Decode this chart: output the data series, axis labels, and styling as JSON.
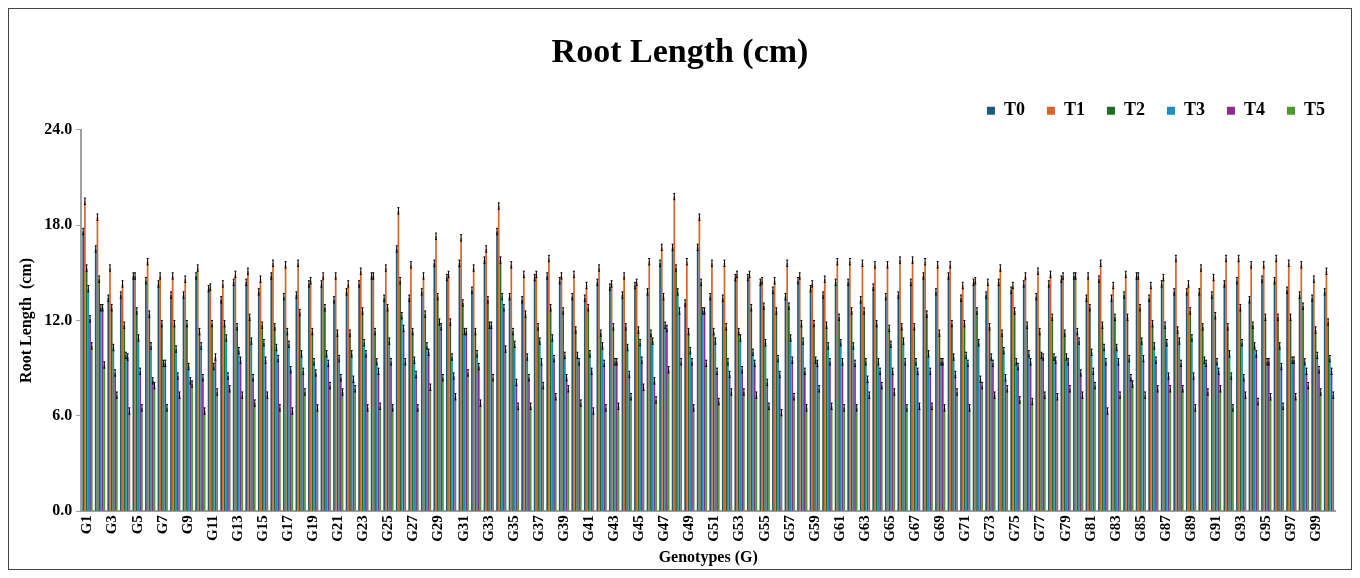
{
  "chart_data": {
    "type": "bar",
    "title": "Root Length (cm)",
    "xlabel": "Genotypes (G)",
    "ylabel": "Root Length  (cm)",
    "categories": [
      "G1",
      null,
      "G3",
      null,
      "G5",
      null,
      "G7",
      null,
      "G9",
      null,
      "G11",
      null,
      "G13",
      null,
      "G15",
      null,
      "G17",
      null,
      "G19",
      null,
      "G21",
      null,
      "G23",
      null,
      "G25",
      null,
      "G27",
      null,
      "G29",
      null,
      "G31",
      null,
      "G33",
      null,
      "G35",
      null,
      "G37",
      null,
      "G39",
      null,
      "G41",
      null,
      "G43",
      null,
      "G45",
      null,
      "G47",
      null,
      "G49",
      null,
      "G51",
      null,
      "G53",
      null,
      "G55",
      null,
      "G57",
      null,
      "G59",
      null,
      "G61",
      null,
      "G63",
      null,
      "G65",
      null,
      "G67",
      null,
      "G69",
      null,
      "G71",
      null,
      "G73",
      null,
      "G75",
      null,
      "G77",
      null,
      "G79",
      null,
      "G81",
      null,
      "G83",
      null,
      "G85",
      null,
      "G87",
      null,
      "G89",
      null,
      "G91",
      null,
      "G93",
      null,
      "G95",
      null,
      "G97",
      null,
      "G99",
      null
    ],
    "series": [
      {
        "name": "T0",
        "color": "#1f5a7a",
        "values": [
          17.6,
          16.5,
          13.4,
          13.6,
          14.8,
          14.5,
          14.3,
          13.6,
          13.6,
          14.8,
          14.0,
          13.3,
          14.4,
          14.4,
          13.8,
          14.8,
          13.5,
          13.6,
          14.3,
          14.3,
          13.3,
          13.8,
          14.3,
          14.8,
          13.4,
          16.5,
          13.4,
          13.8,
          15.6,
          14.7,
          15.6,
          13.9,
          15.8,
          17.6,
          13.5,
          13.3,
          14.7,
          14.8,
          14.5,
          13.5,
          13.4,
          14.4,
          14.1,
          13.6,
          14.2,
          13.8,
          15.6,
          16.6,
          13.1,
          16.6,
          13.5,
          13.4,
          14.7,
          14.7,
          14.4,
          13.9,
          13.5,
          14.5,
          14.0,
          13.6,
          14.4,
          14.4,
          13.3,
          14.1,
          13.5,
          13.6,
          14.4,
          14.8,
          13.8,
          14.8,
          13.4,
          14.4,
          13.6,
          14.4,
          13.9,
          14.3,
          13.5,
          14.3,
          14.6,
          14.8,
          13.4,
          14.6,
          13.4,
          13.6,
          14.8,
          13.4,
          14.3,
          13.8,
          13.8,
          13.8,
          13.6,
          14.3,
          14.5,
          13.3,
          14.6,
          14.5,
          13.9,
          13.6,
          13.4,
          13.8
        ],
        "errors": [
          0.2,
          0.2,
          0.2,
          0.2,
          0.2,
          0.2,
          0.2,
          0.2,
          0.2,
          0.2,
          0.2,
          0.2,
          0.2,
          0.2,
          0.2,
          0.2,
          0.2,
          0.2,
          0.2,
          0.2,
          0.2,
          0.2,
          0.2,
          0.2,
          0.2,
          0.2,
          0.2,
          0.2,
          0.2,
          0.2,
          0.2,
          0.2,
          0.2,
          0.2,
          0.2,
          0.2,
          0.2,
          0.2,
          0.2,
          0.2,
          0.2,
          0.2,
          0.2,
          0.2,
          0.2,
          0.2,
          0.2,
          0.2,
          0.2,
          0.2,
          0.2,
          0.2,
          0.2,
          0.2,
          0.2,
          0.2,
          0.2,
          0.2,
          0.2,
          0.2,
          0.2,
          0.2,
          0.2,
          0.2,
          0.2,
          0.2,
          0.2,
          0.2,
          0.2,
          0.2,
          0.2,
          0.2,
          0.2,
          0.2,
          0.2,
          0.2,
          0.2,
          0.2,
          0.2,
          0.2,
          0.2,
          0.2,
          0.2,
          0.2,
          0.2,
          0.2,
          0.2,
          0.2,
          0.2,
          0.2,
          0.2,
          0.2,
          0.2,
          0.2,
          0.2,
          0.2,
          0.2,
          0.2,
          0.2,
          0.2
        ]
      },
      {
        "name": "T1",
        "color": "#d9652b",
        "values": [
          19.5,
          18.5,
          15.3,
          14.3,
          14.8,
          15.7,
          14.8,
          14.8,
          14.6,
          15.3,
          14.1,
          14.3,
          14.9,
          15.1,
          14.6,
          15.6,
          15.5,
          15.6,
          14.5,
          14.8,
          14.8,
          14.3,
          15.1,
          14.8,
          15.3,
          18.9,
          15.5,
          14.8,
          17.3,
          14.9,
          17.2,
          15.3,
          16.5,
          19.2,
          15.5,
          14.9,
          14.9,
          15.9,
          14.8,
          14.9,
          14.2,
          15.3,
          14.3,
          14.8,
          14.4,
          15.7,
          16.6,
          19.8,
          15.7,
          18.5,
          15.6,
          15.6,
          14.9,
          14.9,
          14.5,
          14.5,
          15.6,
          14.8,
          14.3,
          14.6,
          15.7,
          15.7,
          15.6,
          15.5,
          15.5,
          15.8,
          15.8,
          15.7,
          15.5,
          15.5,
          14.2,
          14.5,
          14.4,
          15.3,
          14.2,
          14.8,
          15.1,
          14.9,
          14.8,
          14.8,
          14.8,
          15.6,
          14.2,
          14.9,
          14.8,
          14.2,
          14.7,
          15.9,
          14.3,
          15.3,
          14.7,
          15.9,
          15.9,
          15.5,
          15.5,
          15.9,
          15.6,
          15.5,
          14.6,
          15.1
        ],
        "errors": [
          0.2,
          0.2,
          0.2,
          0.2,
          0.2,
          0.2,
          0.2,
          0.2,
          0.2,
          0.2,
          0.2,
          0.2,
          0.2,
          0.2,
          0.2,
          0.2,
          0.2,
          0.2,
          0.2,
          0.2,
          0.2,
          0.2,
          0.2,
          0.2,
          0.2,
          0.2,
          0.2,
          0.2,
          0.2,
          0.2,
          0.2,
          0.2,
          0.2,
          0.2,
          0.2,
          0.2,
          0.2,
          0.2,
          0.2,
          0.2,
          0.2,
          0.2,
          0.2,
          0.2,
          0.2,
          0.2,
          0.2,
          0.2,
          0.2,
          0.2,
          0.2,
          0.2,
          0.2,
          0.2,
          0.2,
          0.2,
          0.2,
          0.2,
          0.2,
          0.2,
          0.2,
          0.2,
          0.2,
          0.2,
          0.2,
          0.2,
          0.2,
          0.2,
          0.2,
          0.2,
          0.2,
          0.2,
          0.2,
          0.2,
          0.2,
          0.2,
          0.2,
          0.2,
          0.2,
          0.2,
          0.2,
          0.2,
          0.2,
          0.2,
          0.2,
          0.2,
          0.2,
          0.2,
          0.2,
          0.2,
          0.2,
          0.2,
          0.2,
          0.2,
          0.2,
          0.2,
          0.2,
          0.2,
          0.2,
          0.2
        ]
      },
      {
        "name": "T2",
        "color": "#1e6b2a",
        "values": [
          15.3,
          14.6,
          12.8,
          11.7,
          12.6,
          12.4,
          11.8,
          11.8,
          11.8,
          11.3,
          11.8,
          11.8,
          11.6,
          12.2,
          11.7,
          11.6,
          11.3,
          12.5,
          11.3,
          12.8,
          11.2,
          11.2,
          12.6,
          11.3,
          12.8,
          14.5,
          11.3,
          12.4,
          13.5,
          11.9,
          13.1,
          11.3,
          13.3,
          15.8,
          11.3,
          12.4,
          11.6,
          12.8,
          12.6,
          11.4,
          12.8,
          11.2,
          11.6,
          11.6,
          11.4,
          11.2,
          13.5,
          15.3,
          11.3,
          14.4,
          11.3,
          11.6,
          11.3,
          12.8,
          12.9,
          12.6,
          12.9,
          11.8,
          11.8,
          11.7,
          12.2,
          12.6,
          12.6,
          11.8,
          11.5,
          11.6,
          11.6,
          12.4,
          11.2,
          11.8,
          11.8,
          12.6,
          11.6,
          11.2,
          12.6,
          11.7,
          11.3,
          12.2,
          11.2,
          11.3,
          12.8,
          11.7,
          12.2,
          12.2,
          12.8,
          11.8,
          11.7,
          11.4,
          12.6,
          11.6,
          12.3,
          11.6,
          12.8,
          11.7,
          12.2,
          12.2,
          12.2,
          12.9,
          11.4,
          11.9
        ],
        "errors": [
          0.2,
          0.2,
          0.2,
          0.2,
          0.2,
          0.2,
          0.2,
          0.2,
          0.2,
          0.2,
          0.2,
          0.2,
          0.2,
          0.2,
          0.2,
          0.2,
          0.2,
          0.2,
          0.2,
          0.2,
          0.2,
          0.2,
          0.2,
          0.2,
          0.2,
          0.2,
          0.2,
          0.2,
          0.2,
          0.2,
          0.2,
          0.2,
          0.2,
          0.2,
          0.2,
          0.2,
          0.2,
          0.2,
          0.2,
          0.2,
          0.2,
          0.2,
          0.2,
          0.2,
          0.2,
          0.2,
          0.2,
          0.2,
          0.2,
          0.2,
          0.2,
          0.2,
          0.2,
          0.2,
          0.2,
          0.2,
          0.2,
          0.2,
          0.2,
          0.2,
          0.2,
          0.2,
          0.2,
          0.2,
          0.2,
          0.2,
          0.2,
          0.2,
          0.2,
          0.2,
          0.2,
          0.2,
          0.2,
          0.2,
          0.2,
          0.2,
          0.2,
          0.2,
          0.2,
          0.2,
          0.2,
          0.2,
          0.2,
          0.2,
          0.2,
          0.2,
          0.2,
          0.2,
          0.2,
          0.2,
          0.2,
          0.2,
          0.2,
          0.2,
          0.2,
          0.2,
          0.2,
          0.2,
          0.2,
          0.2
        ]
      },
      {
        "name": "T3",
        "color": "#1a8fc4",
        "values": [
          14.0,
          12.8,
          10.3,
          9.8,
          10.9,
          10.4,
          9.3,
          10.2,
          9.1,
          10.4,
          9.1,
          10.9,
          10.1,
          10.7,
          10.6,
          10.3,
          10.5,
          9.9,
          9.4,
          9.9,
          9.6,
          9.9,
          10.6,
          9.4,
          10.7,
          12.3,
          9.5,
          10.4,
          11.9,
          9.7,
          11.3,
          9.9,
          11.7,
          13.5,
          10.5,
          9.7,
          10.7,
          10.9,
          9.8,
          9.8,
          9.9,
          10.4,
          9.4,
          10.3,
          10.6,
          10.7,
          11.7,
          13.8,
          10.1,
          12.6,
          10.7,
          9.4,
          10.9,
          10.0,
          10.6,
          9.6,
          10.9,
          10.7,
          9.5,
          10.4,
          10.6,
          10.4,
          9.4,
          9.4,
          10.5,
          10.7,
          9.4,
          9.9,
          9.4,
          9.7,
          9.8,
          10.6,
          9.7,
          10.1,
          9.4,
          9.9,
          9.8,
          9.7,
          9.7,
          10.7,
          10.0,
          10.3,
          10.3,
          9.6,
          10.7,
          10.4,
          10.6,
          10.7,
          10.9,
          9.5,
          9.4,
          9.9,
          10.6,
          10.4,
          9.4,
          10.4,
          9.5,
          9.4,
          9.8,
          9.6
        ],
        "errors": [
          0.2,
          0.2,
          0.2,
          0.2,
          0.2,
          0.2,
          0.2,
          0.2,
          0.2,
          0.2,
          0.2,
          0.2,
          0.2,
          0.2,
          0.2,
          0.2,
          0.2,
          0.2,
          0.2,
          0.2,
          0.2,
          0.2,
          0.2,
          0.2,
          0.2,
          0.2,
          0.2,
          0.2,
          0.2,
          0.2,
          0.2,
          0.2,
          0.2,
          0.2,
          0.2,
          0.2,
          0.2,
          0.2,
          0.2,
          0.2,
          0.2,
          0.2,
          0.2,
          0.2,
          0.2,
          0.2,
          0.2,
          0.2,
          0.2,
          0.2,
          0.2,
          0.2,
          0.2,
          0.2,
          0.2,
          0.2,
          0.2,
          0.2,
          0.2,
          0.2,
          0.2,
          0.2,
          0.2,
          0.2,
          0.2,
          0.2,
          0.2,
          0.2,
          0.2,
          0.2,
          0.2,
          0.2,
          0.2,
          0.2,
          0.2,
          0.2,
          0.2,
          0.2,
          0.2,
          0.2,
          0.2,
          0.2,
          0.2,
          0.2,
          0.2,
          0.2,
          0.2,
          0.2,
          0.2,
          0.2,
          0.2,
          0.2,
          0.2,
          0.2,
          0.2,
          0.2,
          0.2,
          0.2,
          0.2,
          0.2
        ]
      },
      {
        "name": "T4",
        "color": "#8e2c8c",
        "values": [
          12.1,
          12.8,
          8.7,
          9.7,
          8.8,
          8.2,
          9.3,
          8.5,
          8.2,
          8.4,
          9.7,
          8.5,
          9.5,
          8.4,
          9.5,
          9.6,
          8.9,
          8.8,
          8.7,
          9.3,
          8.4,
          8.3,
          9.9,
          8.8,
          9.4,
          11.5,
          8.6,
          10.0,
          11.6,
          8.5,
          11.3,
          9.1,
          11.7,
          12.8,
          8.1,
          8.4,
          9.4,
          9.6,
          8.4,
          9.4,
          8.8,
          9.3,
          9.4,
          8.6,
          9.5,
          8.2,
          11.5,
          12.6,
          9.4,
          12.6,
          8.8,
          8.6,
          8.9,
          9.3,
          8.1,
          8.6,
          9.5,
          8.8,
          9.3,
          9.4,
          9.4,
          9.3,
          8.3,
          8.8,
          8.8,
          9.4,
          8.8,
          8.8,
          9.4,
          8.6,
          9.3,
          8.3,
          9.3,
          8.4,
          9.1,
          9.4,
          9.7,
          9.5,
          9.4,
          8.7,
          8.8,
          9.4,
          9.4,
          8.4,
          9.6,
          9.5,
          8.5,
          9.3,
          8.5,
          9.3,
          8.8,
          8.5,
          8.4,
          9.9,
          9.4,
          9.1,
          9.5,
          8.8,
          8.9,
          8.8
        ],
        "errors": [
          0.2,
          0.2,
          0.2,
          0.2,
          0.2,
          0.2,
          0.2,
          0.2,
          0.2,
          0.2,
          0.2,
          0.2,
          0.2,
          0.2,
          0.2,
          0.2,
          0.2,
          0.2,
          0.2,
          0.2,
          0.2,
          0.2,
          0.2,
          0.2,
          0.2,
          0.2,
          0.2,
          0.2,
          0.2,
          0.2,
          0.2,
          0.2,
          0.2,
          0.2,
          0.2,
          0.2,
          0.2,
          0.2,
          0.2,
          0.2,
          0.2,
          0.2,
          0.2,
          0.2,
          0.2,
          0.2,
          0.2,
          0.2,
          0.2,
          0.2,
          0.2,
          0.2,
          0.2,
          0.2,
          0.2,
          0.2,
          0.2,
          0.2,
          0.2,
          0.2,
          0.2,
          0.2,
          0.2,
          0.2,
          0.2,
          0.2,
          0.2,
          0.2,
          0.2,
          0.2,
          0.2,
          0.2,
          0.2,
          0.2,
          0.2,
          0.2,
          0.2,
          0.2,
          0.2,
          0.2,
          0.2,
          0.2,
          0.2,
          0.2,
          0.2,
          0.2,
          0.2,
          0.2,
          0.2,
          0.2,
          0.2,
          0.2,
          0.2,
          0.2,
          0.2,
          0.2,
          0.2,
          0.2,
          0.2,
          0.2
        ]
      },
      {
        "name": "T5",
        "color": "#4e9a2e",
        "values": [
          10.4,
          9.2,
          7.3,
          6.3,
          6.5,
          7.9,
          6.5,
          7.3,
          8.0,
          6.3,
          7.5,
          7.7,
          7.3,
          6.8,
          7.3,
          6.5,
          6.3,
          7.5,
          6.5,
          7.9,
          7.5,
          7.7,
          6.5,
          6.6,
          6.5,
          9.4,
          6.5,
          7.8,
          8.4,
          7.2,
          8.7,
          6.8,
          8.4,
          10.2,
          6.6,
          6.6,
          7.9,
          7.2,
          7.7,
          6.8,
          6.3,
          6.5,
          6.6,
          7.2,
          7.8,
          7.0,
          8.9,
          9.4,
          6.5,
          9.3,
          6.9,
          7.5,
          7.5,
          7.3,
          6.6,
          6.2,
          7.2,
          6.5,
          7.7,
          6.6,
          6.5,
          6.5,
          7.3,
          7.9,
          7.5,
          6.5,
          6.6,
          6.6,
          6.5,
          7.5,
          6.5,
          7.9,
          7.3,
          7.7,
          7.0,
          6.9,
          7.3,
          7.2,
          7.7,
          7.3,
          7.9,
          6.3,
          7.3,
          8.0,
          7.3,
          7.7,
          7.7,
          7.7,
          6.5,
          7.5,
          7.7,
          6.5,
          7.3,
          6.9,
          7.2,
          6.6,
          7.2,
          7.9,
          7.5,
          7.3
        ],
        "errors": [
          0.2,
          0.2,
          0.2,
          0.2,
          0.2,
          0.2,
          0.2,
          0.2,
          0.2,
          0.2,
          0.2,
          0.2,
          0.2,
          0.2,
          0.2,
          0.2,
          0.2,
          0.2,
          0.2,
          0.2,
          0.2,
          0.2,
          0.2,
          0.2,
          0.2,
          0.2,
          0.2,
          0.2,
          0.2,
          0.2,
          0.2,
          0.2,
          0.2,
          0.2,
          0.2,
          0.2,
          0.2,
          0.2,
          0.2,
          0.2,
          0.2,
          0.2,
          0.2,
          0.2,
          0.2,
          0.2,
          0.2,
          0.2,
          0.2,
          0.2,
          0.2,
          0.2,
          0.2,
          0.2,
          0.2,
          0.2,
          0.2,
          0.2,
          0.2,
          0.2,
          0.2,
          0.2,
          0.2,
          0.2,
          0.2,
          0.2,
          0.2,
          0.2,
          0.2,
          0.2,
          0.2,
          0.2,
          0.2,
          0.2,
          0.2,
          0.2,
          0.2,
          0.2,
          0.2,
          0.2,
          0.2,
          0.2,
          0.2,
          0.2,
          0.2,
          0.2,
          0.2,
          0.2,
          0.2,
          0.2,
          0.2,
          0.2,
          0.2,
          0.2,
          0.2,
          0.2,
          0.2,
          0.2,
          0.2,
          0.2
        ]
      }
    ],
    "ylim": [
      0,
      24
    ],
    "yticks": [
      {
        "value": 0,
        "label": "0.0"
      },
      {
        "value": 6,
        "label": "6.0"
      },
      {
        "value": 12,
        "label": "12.0"
      },
      {
        "value": 18,
        "label": "18.0"
      },
      {
        "value": 24,
        "label": "24.0"
      }
    ],
    "grid": false,
    "legend": "top right"
  }
}
